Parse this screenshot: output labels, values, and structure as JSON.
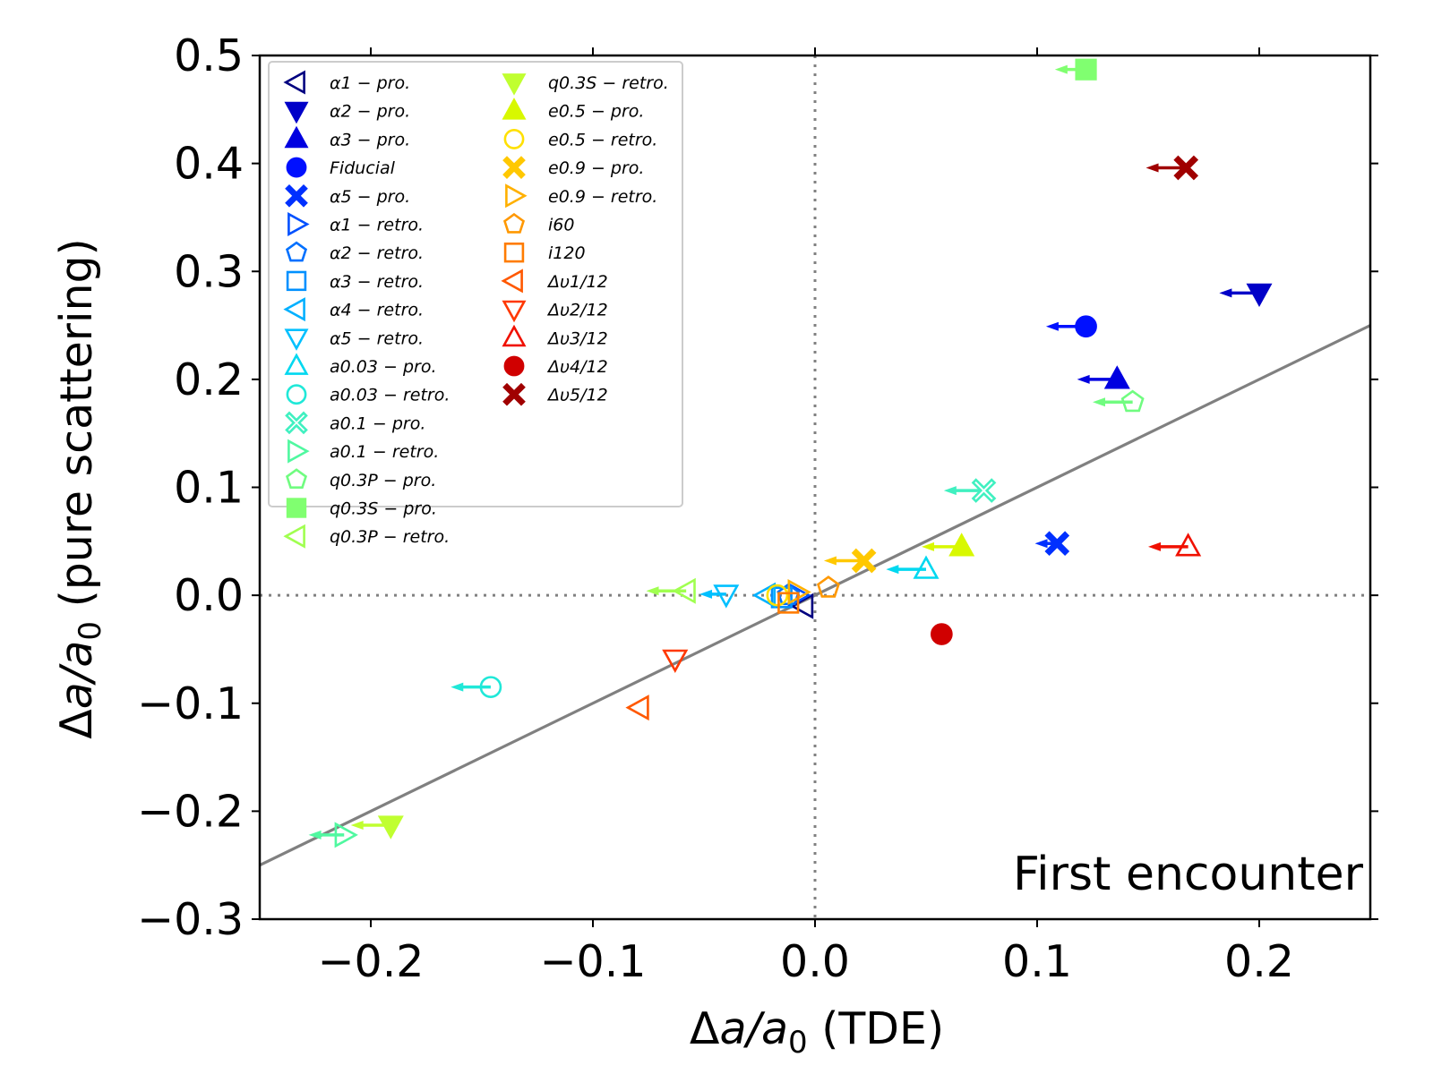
{
  "chart_data": {
    "type": "scatter",
    "title": "",
    "annotation": "First encounter",
    "xlabel": {
      "main": "Δa/a",
      "sub": "0",
      "suffix": " (TDE)"
    },
    "ylabel": {
      "main": "Δa/a",
      "sub": "0",
      "suffix": " (pure scattering)"
    },
    "xlim": [
      -0.25,
      0.25
    ],
    "ylim": [
      -0.3,
      0.5
    ],
    "xticks": [
      -0.2,
      -0.1,
      0.0,
      0.1,
      0.2
    ],
    "xtick_labels": [
      "−0.2",
      "−0.1",
      "0.0",
      "0.1",
      "0.2"
    ],
    "yticks": [
      -0.3,
      -0.2,
      -0.1,
      0.0,
      0.1,
      0.2,
      0.3,
      0.4,
      0.5
    ],
    "ytick_labels": [
      "−0.3",
      "−0.2",
      "−0.1",
      "0.0",
      "0.1",
      "0.2",
      "0.3",
      "0.4",
      "0.5"
    ],
    "reference_lines": [
      {
        "kind": "horizontal",
        "value": 0.0,
        "style": "dotted",
        "color": "#808080"
      },
      {
        "kind": "vertical",
        "value": 0.0,
        "style": "dotted",
        "color": "#808080"
      },
      {
        "kind": "line",
        "slope": 1.0,
        "intercept": 0.0,
        "style": "solid",
        "color": "#808080"
      }
    ],
    "series": [
      {
        "name": "α1 − pro.",
        "marker": "triangle-left",
        "filled": false,
        "color": "#000080",
        "x": -0.005,
        "y": -0.01,
        "arrow_dx": 0.0
      },
      {
        "name": "α2 − pro.",
        "marker": "triangle-down",
        "filled": true,
        "color": "#0000c8",
        "x": 0.2,
        "y": 0.28,
        "arrow_dx": -0.018
      },
      {
        "name": "α3 − pro.",
        "marker": "triangle-up",
        "filled": true,
        "color": "#0000e0",
        "x": 0.136,
        "y": 0.2,
        "arrow_dx": -0.018
      },
      {
        "name": "Fiducial",
        "marker": "circle",
        "filled": true,
        "color": "#0010ff",
        "x": 0.122,
        "y": 0.249,
        "arrow_dx": -0.018
      },
      {
        "name": "α5 − pro.",
        "marker": "x",
        "filled": true,
        "color": "#0030ff",
        "x": 0.109,
        "y": 0.048,
        "arrow_dx": -0.01
      },
      {
        "name": "α1 − retro.",
        "marker": "triangle-right",
        "filled": false,
        "color": "#0050ff",
        "x": -0.008,
        "y": 0.0,
        "arrow_dx": 0.0
      },
      {
        "name": "α2 − retro.",
        "marker": "pentagon",
        "filled": false,
        "color": "#0070ff",
        "x": -0.012,
        "y": 0.0,
        "arrow_dx": 0.0
      },
      {
        "name": "α3 − retro.",
        "marker": "square",
        "filled": false,
        "color": "#0090ff",
        "x": -0.015,
        "y": -0.002,
        "arrow_dx": 0.0
      },
      {
        "name": "α4 − retro.",
        "marker": "triangle-left",
        "filled": false,
        "color": "#00b0ff",
        "x": -0.022,
        "y": 0.0,
        "arrow_dx": 0.0
      },
      {
        "name": "α5 − retro.",
        "marker": "triangle-down",
        "filled": false,
        "color": "#00c0ff",
        "x": -0.04,
        "y": 0.001,
        "arrow_dx": -0.012
      },
      {
        "name": "a0.03 − pro.",
        "marker": "triangle-up",
        "filled": false,
        "color": "#00d8f0",
        "x": 0.05,
        "y": 0.024,
        "arrow_dx": -0.018
      },
      {
        "name": "a0.03 − retro.",
        "marker": "circle",
        "filled": false,
        "color": "#20e8d8",
        "x": -0.146,
        "y": -0.085,
        "arrow_dx": -0.018
      },
      {
        "name": "a0.1 − pro.",
        "marker": "x",
        "filled": false,
        "color": "#40f0c0",
        "x": 0.076,
        "y": 0.097,
        "arrow_dx": -0.018
      },
      {
        "name": "a0.1 − retro.",
        "marker": "triangle-right",
        "filled": false,
        "color": "#50f8a0",
        "x": -0.212,
        "y": -0.222,
        "arrow_dx": -0.016
      },
      {
        "name": "q0.3P − pro.",
        "marker": "pentagon",
        "filled": false,
        "color": "#70fc80",
        "x": 0.143,
        "y": 0.179,
        "arrow_dx": -0.018
      },
      {
        "name": "q0.3S − pro.",
        "marker": "square",
        "filled": true,
        "color": "#80ff70",
        "x": 0.122,
        "y": 0.487,
        "arrow_dx": -0.014
      },
      {
        "name": "q0.3P − retro.",
        "marker": "triangle-left",
        "filled": false,
        "color": "#a0ff50",
        "x": -0.058,
        "y": 0.004,
        "arrow_dx": -0.018
      },
      {
        "name": "q0.3S − retro.",
        "marker": "triangle-down",
        "filled": true,
        "color": "#c0ff30",
        "x": -0.191,
        "y": -0.213,
        "arrow_dx": -0.018
      },
      {
        "name": "e0.5 − pro.",
        "marker": "triangle-up",
        "filled": true,
        "color": "#d8f800",
        "x": 0.066,
        "y": 0.045,
        "arrow_dx": -0.018
      },
      {
        "name": "e0.5 − retro.",
        "marker": "circle",
        "filled": false,
        "color": "#ffe000",
        "x": -0.017,
        "y": 0.0,
        "arrow_dx": 0.0
      },
      {
        "name": "e0.9 − pro.",
        "marker": "x",
        "filled": true,
        "color": "#ffc800",
        "x": 0.022,
        "y": 0.032,
        "arrow_dx": -0.018
      },
      {
        "name": "e0.9 − retro.",
        "marker": "triangle-right",
        "filled": false,
        "color": "#ffb000",
        "x": -0.008,
        "y": 0.003,
        "arrow_dx": 0.0
      },
      {
        "name": "i60",
        "marker": "pentagon",
        "filled": false,
        "color": "#ff9800",
        "x": 0.006,
        "y": 0.007,
        "arrow_dx": 0.0
      },
      {
        "name": "i120",
        "marker": "square",
        "filled": false,
        "color": "#ff7c00",
        "x": -0.012,
        "y": -0.007,
        "arrow_dx": 0.0
      },
      {
        "name": "Δυ1/12",
        "marker": "triangle-left",
        "filled": false,
        "color": "#ff5800",
        "x": -0.079,
        "y": -0.104,
        "arrow_dx": 0.0
      },
      {
        "name": "Δυ2/12",
        "marker": "triangle-down",
        "filled": false,
        "color": "#ff3800",
        "x": -0.063,
        "y": -0.059,
        "arrow_dx": 0.0
      },
      {
        "name": "Δυ3/12",
        "marker": "triangle-up",
        "filled": false,
        "color": "#f01000",
        "x": 0.168,
        "y": 0.045,
        "arrow_dx": -0.018
      },
      {
        "name": "Δυ4/12",
        "marker": "circle",
        "filled": true,
        "color": "#d00000",
        "x": 0.057,
        "y": -0.036,
        "arrow_dx": 0.0
      },
      {
        "name": "Δυ5/12",
        "marker": "x",
        "filled": true,
        "color": "#a00000",
        "x": 0.167,
        "y": 0.396,
        "arrow_dx": -0.018
      }
    ]
  }
}
